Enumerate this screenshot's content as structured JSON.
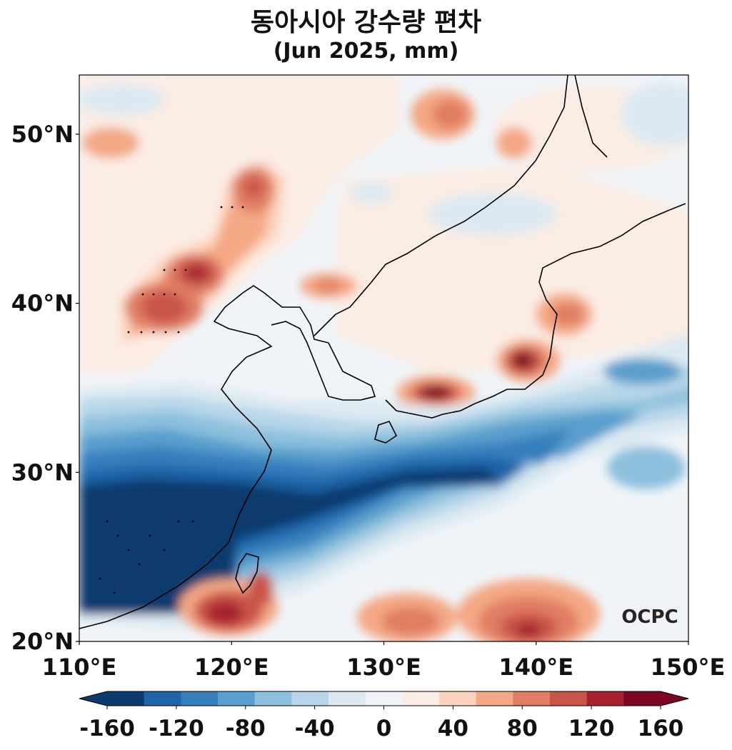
{
  "title": {
    "line1": "동아시아 강수량 편차",
    "line2": "(Jun 2025, mm)"
  },
  "map": {
    "lon_range": [
      110,
      150
    ],
    "lat_range": [
      20,
      53.5
    ],
    "x_ticks": [
      {
        "value": 110,
        "label": "110°E"
      },
      {
        "value": 120,
        "label": "120°E"
      },
      {
        "value": 130,
        "label": "130°E"
      },
      {
        "value": 140,
        "label": "140°E"
      },
      {
        "value": 150,
        "label": "150°E"
      }
    ],
    "y_ticks": [
      {
        "value": 50,
        "label": "50°N"
      },
      {
        "value": 40,
        "label": "40°N"
      },
      {
        "value": 30,
        "label": "30°N"
      },
      {
        "value": 20,
        "label": "20°N"
      }
    ],
    "logo": "OCPC"
  },
  "colorbar": {
    "colors": [
      "#0b3a6e",
      "#1f64a8",
      "#347fbc",
      "#5a9ecd",
      "#8cc0dd",
      "#b7d6e9",
      "#dce9f2",
      "#f0f4f8",
      "#fbece4",
      "#fcd3bd",
      "#f4a885",
      "#e07d64",
      "#c9544a",
      "#a6202f",
      "#7a0822"
    ],
    "ticks": [
      "-160",
      "-120",
      "-80",
      "-40",
      "0",
      "40",
      "80",
      "120",
      "160"
    ],
    "under": "#0b3a6e",
    "over": "#7a0822"
  }
}
